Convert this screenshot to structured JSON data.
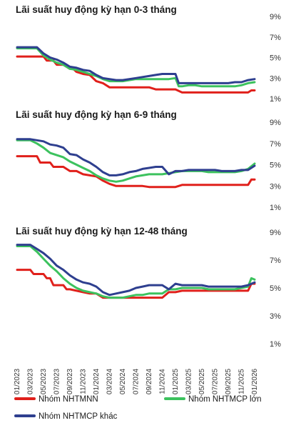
{
  "colors": {
    "Nhóm NHTMNN": "#e0201b",
    "Nhóm NHTMCP lớn": "#3cc25e",
    "Nhóm NHTMCP khác": "#2e3f8f"
  },
  "legend": [
    "Nhóm NHTMNN",
    "Nhóm NHTMCP lớn",
    "Nhóm NHTMCP khác"
  ],
  "x_labels": [
    "01/2023",
    "03/2023",
    "05/2023",
    "07/2023",
    "09/2023",
    "11/2023",
    "01/2024",
    "03/2024",
    "05/2024",
    "07/2024",
    "09/2024",
    "11/2024",
    "01/2025",
    "03/2025",
    "05/2025",
    "07/2025",
    "09/2025",
    "11/2025",
    "01/2026"
  ],
  "chart_data": [
    {
      "type": "line",
      "title": "Lãi suất huy động kỳ hạn 0-3 tháng",
      "yticks": [
        "1%",
        "3%",
        "5%",
        "7%",
        "9%"
      ],
      "ylim": [
        1,
        9
      ],
      "x_range": [
        0,
        36
      ],
      "series": [
        {
          "name": "Nhóm NHTMNN",
          "x": [
            0,
            4,
            4.5,
            5.5,
            6,
            7,
            8,
            8.5,
            9,
            10,
            11,
            12,
            13,
            14,
            15,
            16,
            17,
            18,
            19,
            20,
            21,
            22,
            23,
            24,
            25,
            26,
            27,
            28,
            29,
            30,
            31,
            32,
            33,
            34,
            35,
            35.5,
            36
          ],
          "y": [
            5.1,
            5.1,
            4.7,
            4.7,
            4.3,
            4.3,
            3.9,
            3.9,
            3.6,
            3.4,
            3.3,
            2.7,
            2.5,
            2.1,
            2.1,
            2.1,
            2.1,
            2.1,
            2.1,
            2.1,
            1.9,
            1.9,
            1.9,
            1.9,
            1.6,
            1.6,
            1.6,
            1.6,
            1.6,
            1.6,
            1.6,
            1.6,
            1.6,
            1.6,
            1.6,
            1.8,
            1.8
          ]
        },
        {
          "name": "Nhóm NHTMCP lớn",
          "x": [
            0,
            1,
            2,
            3,
            4,
            5,
            6,
            7,
            8,
            9,
            10,
            11,
            12,
            13,
            14,
            15,
            16,
            17,
            18,
            19,
            20,
            21,
            22,
            23,
            24,
            24.5,
            25,
            26,
            27,
            28,
            29,
            30,
            31,
            32,
            33,
            34,
            35,
            36
          ],
          "y": [
            5.9,
            5.9,
            5.9,
            5.9,
            5.2,
            4.8,
            4.5,
            4.3,
            3.9,
            3.8,
            3.6,
            3.4,
            3.2,
            2.9,
            2.7,
            2.7,
            2.7,
            2.8,
            2.9,
            2.9,
            2.9,
            2.9,
            2.9,
            2.9,
            3.0,
            2.2,
            2.2,
            2.3,
            2.3,
            2.2,
            2.2,
            2.2,
            2.2,
            2.2,
            2.2,
            2.3,
            2.5,
            2.6
          ]
        },
        {
          "name": "Nhóm NHTMCP khác",
          "x": [
            0,
            1,
            2,
            3,
            4,
            5,
            6,
            7,
            8,
            9,
            10,
            11,
            12,
            13,
            14,
            15,
            16,
            17,
            18,
            19,
            20,
            21,
            22,
            23,
            24,
            24.5,
            25,
            26,
            27,
            28,
            29,
            30,
            31,
            32,
            33,
            34,
            35,
            36
          ],
          "y": [
            6.0,
            6.0,
            6.0,
            6.0,
            5.4,
            5.0,
            4.8,
            4.5,
            4.1,
            4.0,
            3.8,
            3.7,
            3.3,
            3.0,
            2.9,
            2.8,
            2.8,
            2.9,
            3.0,
            3.1,
            3.2,
            3.3,
            3.4,
            3.4,
            3.4,
            2.5,
            2.5,
            2.5,
            2.5,
            2.5,
            2.5,
            2.5,
            2.5,
            2.5,
            2.6,
            2.6,
            2.8,
            2.9
          ]
        }
      ]
    },
    {
      "type": "line",
      "title": "Lãi suất huy động kỳ hạn 6-9 tháng",
      "yticks": [
        "1%",
        "3%",
        "5%",
        "7%",
        "9%"
      ],
      "ylim": [
        1,
        9
      ],
      "x_range": [
        0,
        36
      ],
      "series": [
        {
          "name": "Nhóm NHTMNN",
          "x": [
            0,
            3,
            3.5,
            5,
            5.5,
            6,
            7,
            8,
            9,
            10,
            11,
            12,
            13,
            14,
            15,
            16,
            17,
            18,
            19,
            20,
            21,
            22,
            23,
            24,
            25,
            26,
            27,
            28,
            29,
            30,
            31,
            32,
            33,
            34,
            35,
            35.5,
            36
          ],
          "y": [
            5.8,
            5.8,
            5.2,
            5.2,
            4.8,
            4.8,
            4.8,
            4.4,
            4.4,
            4.1,
            4.0,
            3.9,
            3.5,
            3.2,
            3.0,
            3.0,
            3.0,
            3.0,
            3.0,
            2.9,
            2.9,
            2.9,
            2.9,
            2.9,
            3.1,
            3.1,
            3.1,
            3.1,
            3.1,
            3.1,
            3.1,
            3.1,
            3.1,
            3.1,
            3.1,
            3.6,
            3.6
          ]
        },
        {
          "name": "Nhóm NHTMCP lớn",
          "x": [
            0,
            1,
            2,
            3,
            4,
            5,
            6,
            7,
            8,
            9,
            10,
            11,
            12,
            13,
            14,
            15,
            16,
            17,
            18,
            19,
            20,
            21,
            22,
            23,
            24,
            25,
            26,
            27,
            28,
            29,
            30,
            31,
            32,
            33,
            34,
            35,
            36
          ],
          "y": [
            7.3,
            7.3,
            7.3,
            7.0,
            6.6,
            6.1,
            5.9,
            5.7,
            5.3,
            5.0,
            4.7,
            4.4,
            4.0,
            3.7,
            3.5,
            3.4,
            3.5,
            3.7,
            3.9,
            4.0,
            4.1,
            4.1,
            4.1,
            4.2,
            4.3,
            4.4,
            4.4,
            4.4,
            4.4,
            4.3,
            4.3,
            4.3,
            4.3,
            4.3,
            4.4,
            4.6,
            5.1
          ]
        },
        {
          "name": "Nhóm NHTMCP khác",
          "x": [
            0,
            1,
            2,
            3,
            4,
            5,
            6,
            7,
            8,
            9,
            10,
            11,
            12,
            13,
            14,
            15,
            16,
            17,
            18,
            19,
            20,
            21,
            22,
            23,
            24,
            25,
            26,
            27,
            28,
            29,
            30,
            31,
            32,
            33,
            34,
            35,
            36
          ],
          "y": [
            7.4,
            7.4,
            7.4,
            7.3,
            7.2,
            6.9,
            6.8,
            6.6,
            6.0,
            5.9,
            5.5,
            5.2,
            4.8,
            4.3,
            4.0,
            4.0,
            4.1,
            4.3,
            4.4,
            4.6,
            4.7,
            4.8,
            4.8,
            4.1,
            4.4,
            4.4,
            4.5,
            4.5,
            4.5,
            4.5,
            4.5,
            4.4,
            4.4,
            4.4,
            4.5,
            4.5,
            4.9
          ]
        }
      ]
    },
    {
      "type": "line",
      "title": "Lãi suất huy động kỳ hạn 12-48 tháng",
      "yticks": [
        "1%",
        "3%",
        "5%",
        "7%",
        "9%"
      ],
      "ylim": [
        1,
        9
      ],
      "x_range": [
        0,
        36
      ],
      "series": [
        {
          "name": "Nhóm NHTMNN",
          "x": [
            0,
            2,
            2.5,
            4,
            4.5,
            5,
            5.5,
            7,
            7.5,
            8,
            9,
            10,
            11,
            12,
            13,
            14,
            15,
            16,
            17,
            18,
            19,
            20,
            21,
            22,
            23,
            24,
            25,
            26,
            27,
            28,
            29,
            30,
            31,
            32,
            33,
            34,
            35,
            35.5,
            36
          ],
          "y": [
            6.3,
            6.3,
            6.0,
            6.0,
            5.7,
            5.7,
            5.2,
            5.2,
            4.9,
            4.9,
            4.8,
            4.7,
            4.6,
            4.6,
            4.3,
            4.3,
            4.3,
            4.3,
            4.3,
            4.3,
            4.3,
            4.3,
            4.3,
            4.3,
            4.7,
            4.7,
            4.8,
            4.8,
            4.8,
            4.8,
            4.8,
            4.8,
            4.8,
            4.8,
            4.8,
            4.8,
            4.8,
            5.3,
            5.3
          ]
        },
        {
          "name": "Nhóm NHTMCP lớn",
          "x": [
            0,
            1,
            2,
            3,
            4,
            5,
            6,
            7,
            8,
            9,
            10,
            11,
            12,
            13,
            14,
            15,
            16,
            17,
            18,
            19,
            20,
            21,
            22,
            23,
            24,
            25,
            26,
            27,
            28,
            29,
            30,
            31,
            32,
            33,
            34,
            35,
            35.5,
            36
          ],
          "y": [
            8.0,
            8.0,
            8.0,
            7.6,
            7.1,
            6.6,
            6.2,
            5.7,
            5.3,
            5.0,
            4.8,
            4.7,
            4.6,
            4.4,
            4.3,
            4.3,
            4.3,
            4.4,
            4.5,
            4.5,
            4.6,
            4.6,
            4.6,
            4.9,
            4.9,
            5.0,
            5.0,
            5.0,
            5.0,
            4.9,
            4.9,
            4.9,
            4.9,
            4.9,
            5.0,
            5.1,
            5.7,
            5.6
          ]
        },
        {
          "name": "Nhóm NHTMCP khác",
          "x": [
            0,
            1,
            2,
            3,
            4,
            5,
            6,
            7,
            8,
            9,
            10,
            11,
            12,
            13,
            14,
            15,
            16,
            17,
            18,
            19,
            20,
            21,
            22,
            23,
            24,
            25,
            26,
            27,
            28,
            29,
            30,
            31,
            32,
            33,
            34,
            35,
            36
          ],
          "y": [
            8.1,
            8.1,
            8.1,
            7.8,
            7.5,
            7.1,
            6.6,
            6.3,
            5.9,
            5.6,
            5.4,
            5.3,
            5.1,
            4.7,
            4.5,
            4.6,
            4.7,
            4.8,
            5.0,
            5.1,
            5.2,
            5.2,
            5.2,
            4.9,
            5.3,
            5.2,
            5.2,
            5.2,
            5.2,
            5.1,
            5.1,
            5.1,
            5.1,
            5.1,
            5.1,
            5.2,
            5.4
          ]
        }
      ]
    }
  ]
}
